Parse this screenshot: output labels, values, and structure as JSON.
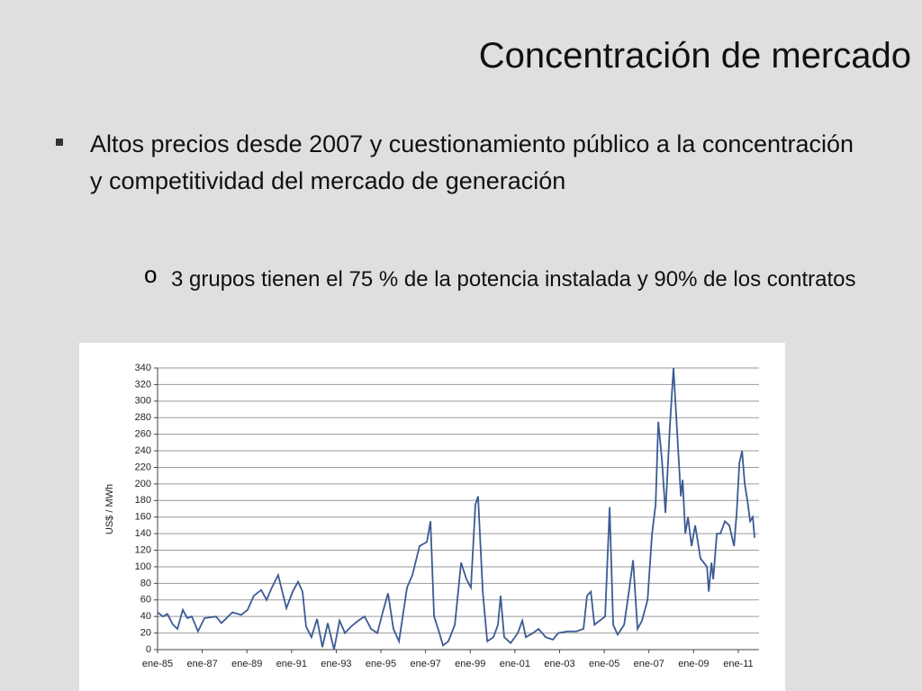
{
  "slide_title": "Concentración de mercado",
  "bullets": [
    "Altos precios desde 2007 y cuestionamiento público a la concentración y  competitividad del mercado de generación"
  ],
  "sub_bullets": [
    "3 grupos tienen el 75 % de la potencia instalada y 90% de los contratos"
  ],
  "chart_data": {
    "type": "line",
    "ylabel": "US$ / MWh",
    "xlim": [
      1985,
      2011.93
    ],
    "xticks": [
      {
        "value": 1985,
        "label": "ene-85"
      },
      {
        "value": 1987,
        "label": "ene-87"
      },
      {
        "value": 1989,
        "label": "ene-89"
      },
      {
        "value": 1991,
        "label": "ene-91"
      },
      {
        "value": 1993,
        "label": "ene-93"
      },
      {
        "value": 1995,
        "label": "ene-95"
      },
      {
        "value": 1997,
        "label": "ene-97"
      },
      {
        "value": 1999,
        "label": "ene-99"
      },
      {
        "value": 2001,
        "label": "ene-01"
      },
      {
        "value": 2003,
        "label": "ene-03"
      },
      {
        "value": 2005,
        "label": "ene-05"
      },
      {
        "value": 2007,
        "label": "ene-07"
      },
      {
        "value": 2009,
        "label": "ene-09"
      },
      {
        "value": 2011,
        "label": "ene-11"
      }
    ],
    "ylim": [
      0,
      340
    ],
    "yticks": [
      0,
      20,
      40,
      60,
      80,
      100,
      120,
      140,
      160,
      180,
      200,
      220,
      240,
      260,
      280,
      300,
      320,
      340
    ],
    "grid": true,
    "series": [
      {
        "color": "#3b5b93",
        "x": [
          1985.0,
          1985.24,
          1985.44,
          1985.69,
          1985.89,
          1986.13,
          1986.33,
          1986.53,
          1986.81,
          1987.1,
          1987.62,
          1987.86,
          1988.35,
          1988.75,
          1989.03,
          1989.31,
          1989.64,
          1989.88,
          1990.12,
          1990.4,
          1990.77,
          1991.05,
          1991.29,
          1991.49,
          1991.65,
          1991.89,
          1992.14,
          1992.38,
          1992.62,
          1992.9,
          1993.15,
          1993.39,
          1993.67,
          1993.99,
          1994.27,
          1994.56,
          1994.84,
          1995.08,
          1995.32,
          1995.56,
          1995.81,
          1996.17,
          1996.41,
          1996.73,
          1997.06,
          1997.22,
          1997.38,
          1997.62,
          1997.78,
          1998.02,
          1998.31,
          1998.59,
          1998.83,
          1999.03,
          1999.23,
          1999.35,
          1999.56,
          1999.76,
          2000.04,
          2000.24,
          2000.36,
          2000.52,
          2000.81,
          2001.13,
          2001.33,
          2001.49,
          2001.81,
          2002.06,
          2002.38,
          2002.7,
          2002.94,
          2003.35,
          2003.75,
          2004.07,
          2004.23,
          2004.4,
          2004.56,
          2005.04,
          2005.24,
          2005.4,
          2005.6,
          2005.89,
          2006.13,
          2006.29,
          2006.49,
          2006.69,
          2006.94,
          2007.14,
          2007.3,
          2007.42,
          2007.58,
          2007.74,
          2007.94,
          2008.1,
          2008.27,
          2008.43,
          2008.51,
          2008.63,
          2008.75,
          2008.91,
          2009.07,
          2009.31,
          2009.6,
          2009.68,
          2009.8,
          2009.88,
          2010.04,
          2010.2,
          2010.4,
          2010.6,
          2010.81,
          2010.93,
          2011.05,
          2011.17,
          2011.29,
          2011.41,
          2011.53,
          2011.65,
          2011.73
        ],
        "values": [
          45,
          40,
          43,
          30,
          25,
          48,
          38,
          40,
          22,
          38,
          40,
          32,
          45,
          42,
          48,
          65,
          72,
          60,
          75,
          90,
          50,
          70,
          82,
          70,
          28,
          15,
          37,
          3,
          32,
          0,
          35,
          20,
          28,
          35,
          40,
          25,
          20,
          45,
          68,
          25,
          10,
          75,
          90,
          125,
          130,
          155,
          40,
          20,
          5,
          10,
          30,
          105,
          85,
          75,
          175,
          185,
          70,
          10,
          15,
          30,
          65,
          15,
          8,
          20,
          35,
          15,
          20,
          25,
          15,
          12,
          20,
          22,
          22,
          25,
          65,
          70,
          30,
          40,
          172,
          30,
          18,
          30,
          75,
          108,
          25,
          35,
          60,
          140,
          175,
          275,
          230,
          165,
          270,
          340,
          260,
          185,
          205,
          140,
          160,
          125,
          150,
          110,
          100,
          70,
          105,
          85,
          140,
          140,
          155,
          150,
          125,
          165,
          225,
          240,
          200,
          180,
          155,
          160,
          135
        ]
      }
    ]
  }
}
